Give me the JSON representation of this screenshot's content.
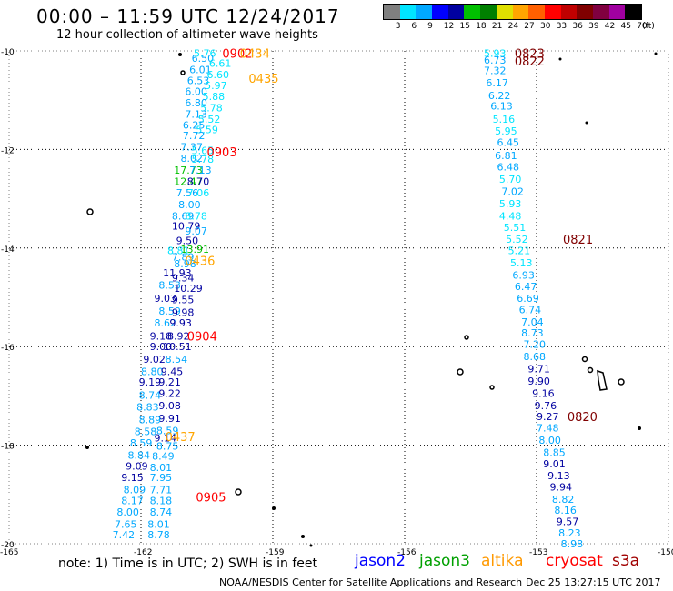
{
  "header": {
    "title": "00:00 – 11:59 UTC 12/24/2017",
    "subtitle": "12 hour collection of altimeter wave heights"
  },
  "legend": {
    "colors": [
      "#808080",
      "#00e5ff",
      "#00a8ff",
      "#0000ff",
      "#0000a0",
      "#00c000",
      "#008000",
      "#e0e000",
      "#ffa500",
      "#ff6000",
      "#ff0000",
      "#c00000",
      "#800000",
      "#800040",
      "#a000a0",
      "#000000"
    ],
    "labels": [
      "3",
      "6",
      "9",
      "12",
      "15",
      "18",
      "21",
      "24",
      "27",
      "30",
      "33",
      "36",
      "39",
      "42",
      "45",
      "70",
      "(ft)"
    ]
  },
  "axes": {
    "lat_labels": [
      "-10",
      "-12",
      "-14",
      "-16",
      "-18",
      "-20"
    ],
    "lon_labels": [
      "-165",
      "-162",
      "-159",
      "-156",
      "-153",
      "-150"
    ]
  },
  "tracks": [
    {
      "time": "0902",
      "color": "#ff0000"
    },
    {
      "time": "0434",
      "color": "#ffa500"
    },
    {
      "time": "0435",
      "color": "#ffa500"
    },
    {
      "time": "0903",
      "color": "#ff0000"
    },
    {
      "time": "0436",
      "color": "#ffa500"
    },
    {
      "time": "0904",
      "color": "#ff0000"
    },
    {
      "time": "0437",
      "color": "#ffa500"
    },
    {
      "time": "0905",
      "color": "#ff0000"
    },
    {
      "time": "0823",
      "color": "#800000"
    },
    {
      "time": "0822",
      "color": "#800000"
    },
    {
      "time": "0821",
      "color": "#800000"
    },
    {
      "time": "0820",
      "color": "#800000"
    }
  ],
  "west_track_readings": [
    {
      "lat": -10.05,
      "lon": -160.8,
      "value": "5.76",
      "color": "#00e5ff"
    },
    {
      "lat": -10.15,
      "lon": -160.85,
      "value": "6.50",
      "color": "#00a8ff"
    },
    {
      "lat": -10.25,
      "lon": -160.45,
      "value": "6.61",
      "color": "#00e5ff"
    },
    {
      "lat": -10.38,
      "lon": -160.9,
      "value": "6.01",
      "color": "#00a8ff"
    },
    {
      "lat": -10.48,
      "lon": -160.5,
      "value": "6.60",
      "color": "#00e5ff"
    },
    {
      "lat": -10.6,
      "lon": -160.95,
      "value": "6.53",
      "color": "#00a8ff"
    },
    {
      "lat": -10.7,
      "lon": -160.55,
      "value": "5.97",
      "color": "#00e5ff"
    },
    {
      "lat": -10.82,
      "lon": -161.0,
      "value": "6.00",
      "color": "#00a8ff"
    },
    {
      "lat": -10.92,
      "lon": -160.6,
      "value": "5.88",
      "color": "#00e5ff"
    },
    {
      "lat": -11.05,
      "lon": -161.0,
      "value": "6.80",
      "color": "#00a8ff"
    },
    {
      "lat": -11.15,
      "lon": -160.65,
      "value": "5.78",
      "color": "#00e5ff"
    },
    {
      "lat": -11.28,
      "lon": -161.0,
      "value": "7.13",
      "color": "#00a8ff"
    },
    {
      "lat": -11.38,
      "lon": -160.7,
      "value": "5.52",
      "color": "#00e5ff"
    },
    {
      "lat": -11.5,
      "lon": -161.05,
      "value": "6.25",
      "color": "#00a8ff"
    },
    {
      "lat": -11.6,
      "lon": -160.75,
      "value": "5.59",
      "color": "#00e5ff"
    },
    {
      "lat": -11.72,
      "lon": -161.05,
      "value": "7.72",
      "color": "#00a8ff"
    },
    {
      "lat": -11.95,
      "lon": -161.1,
      "value": "7.37",
      "color": "#00a8ff"
    },
    {
      "lat": -12.02,
      "lon": -160.85,
      "value": "5.65",
      "color": "#00e5ff"
    },
    {
      "lat": -12.18,
      "lon": -161.1,
      "value": "8.02",
      "color": "#00a8ff"
    },
    {
      "lat": -12.2,
      "lon": -160.85,
      "value": "5.78",
      "color": "#00e5ff"
    },
    {
      "lat": -12.42,
      "lon": -161.25,
      "value": "17.73",
      "color": "#00c000"
    },
    {
      "lat": -12.42,
      "lon": -160.9,
      "value": "7.13",
      "color": "#00a8ff"
    },
    {
      "lat": -12.65,
      "lon": -161.25,
      "value": "12.47",
      "color": "#00c000"
    },
    {
      "lat": -12.65,
      "lon": -160.95,
      "value": "8.70",
      "color": "#0000a0"
    },
    {
      "lat": -12.88,
      "lon": -161.2,
      "value": "7.56",
      "color": "#00a8ff"
    },
    {
      "lat": -12.88,
      "lon": -160.95,
      "value": "7.06",
      "color": "#00e5ff"
    },
    {
      "lat": -13.12,
      "lon": -161.15,
      "value": "8.00",
      "color": "#00a8ff"
    },
    {
      "lat": -13.35,
      "lon": -161.3,
      "value": "8.69",
      "color": "#00a8ff"
    },
    {
      "lat": -13.35,
      "lon": -161.0,
      "value": "8.78",
      "color": "#00e5ff"
    },
    {
      "lat": -13.55,
      "lon": -161.3,
      "value": "10.79",
      "color": "#0000a0"
    },
    {
      "lat": -13.65,
      "lon": -161.0,
      "value": "9.07",
      "color": "#00a8ff"
    },
    {
      "lat": -13.85,
      "lon": -161.2,
      "value": "9.50",
      "color": "#0000a0"
    },
    {
      "lat": -14.02,
      "lon": -161.1,
      "value": "13.91",
      "color": "#00c000"
    },
    {
      "lat": -14.05,
      "lon": -161.4,
      "value": "8.81",
      "color": "#00e5ff"
    },
    {
      "lat": -14.18,
      "lon": -161.3,
      "value": "7.89",
      "color": "#00a8ff"
    },
    {
      "lat": -14.32,
      "lon": -161.25,
      "value": "8.98",
      "color": "#00a8ff"
    },
    {
      "lat": -14.5,
      "lon": -161.5,
      "value": "11.93",
      "color": "#0000a0"
    },
    {
      "lat": -14.6,
      "lon": -161.3,
      "value": "9.34",
      "color": "#0000a0"
    },
    {
      "lat": -14.75,
      "lon": -161.6,
      "value": "8.53",
      "color": "#00a8ff"
    },
    {
      "lat": -14.82,
      "lon": -161.25,
      "value": "10.29",
      "color": "#0000a0"
    },
    {
      "lat": -15.02,
      "lon": -161.7,
      "value": "9.03",
      "color": "#0000a0"
    },
    {
      "lat": -15.05,
      "lon": -161.3,
      "value": "9.55",
      "color": "#0000a0"
    },
    {
      "lat": -15.28,
      "lon": -161.6,
      "value": "8.59",
      "color": "#00a8ff"
    },
    {
      "lat": -15.3,
      "lon": -161.3,
      "value": "9.98",
      "color": "#0000a0"
    },
    {
      "lat": -15.52,
      "lon": -161.7,
      "value": "8.62",
      "color": "#00a8ff"
    },
    {
      "lat": -15.52,
      "lon": -161.35,
      "value": "9.93",
      "color": "#0000a0"
    },
    {
      "lat": -15.78,
      "lon": -161.8,
      "value": "9.18",
      "color": "#0000a0"
    },
    {
      "lat": -15.78,
      "lon": -161.4,
      "value": "8.92",
      "color": "#0000a0"
    },
    {
      "lat": -16.0,
      "lon": -161.8,
      "value": "9.00",
      "color": "#0000a0"
    },
    {
      "lat": -16.0,
      "lon": -161.5,
      "value": "10.51",
      "color": "#0000a0"
    },
    {
      "lat": -16.25,
      "lon": -161.95,
      "value": "9.02",
      "color": "#0000a0"
    },
    {
      "lat": -16.25,
      "lon": -161.45,
      "value": "8.54",
      "color": "#00a8ff"
    },
    {
      "lat": -16.5,
      "lon": -162.0,
      "value": "8.80",
      "color": "#00a8ff"
    },
    {
      "lat": -16.5,
      "lon": -161.55,
      "value": "9.45",
      "color": "#0000a0"
    },
    {
      "lat": -16.72,
      "lon": -162.05,
      "value": "9.19",
      "color": "#0000a0"
    },
    {
      "lat": -16.72,
      "lon": -161.6,
      "value": "9.21",
      "color": "#0000a0"
    },
    {
      "lat": -16.98,
      "lon": -162.05,
      "value": "8.74",
      "color": "#00a8ff"
    },
    {
      "lat": -16.95,
      "lon": -161.6,
      "value": "9.22",
      "color": "#0000a0"
    },
    {
      "lat": -17.2,
      "lon": -161.6,
      "value": "9.08",
      "color": "#0000a0"
    },
    {
      "lat": -17.22,
      "lon": -162.1,
      "value": "8.83",
      "color": "#00a8ff"
    },
    {
      "lat": -17.45,
      "lon": -161.6,
      "value": "9.91",
      "color": "#0000a0"
    },
    {
      "lat": -17.48,
      "lon": -162.05,
      "value": "8.89",
      "color": "#00a8ff"
    },
    {
      "lat": -17.7,
      "lon": -161.65,
      "value": "8.59",
      "color": "#00a8ff"
    },
    {
      "lat": -17.72,
      "lon": -162.15,
      "value": "8.58",
      "color": "#00a8ff"
    },
    {
      "lat": -17.85,
      "lon": -161.7,
      "value": "9.14",
      "color": "#0000a0"
    },
    {
      "lat": -17.95,
      "lon": -162.25,
      "value": "8.59",
      "color": "#00a8ff"
    },
    {
      "lat": -18.02,
      "lon": -161.65,
      "value": "8.75",
      "color": "#00a8ff"
    },
    {
      "lat": -18.2,
      "lon": -162.3,
      "value": "8.84",
      "color": "#00a8ff"
    },
    {
      "lat": -18.22,
      "lon": -161.75,
      "value": "8.49",
      "color": "#00a8ff"
    },
    {
      "lat": -18.42,
      "lon": -162.35,
      "value": "9.09",
      "color": "#0000a0"
    },
    {
      "lat": -18.45,
      "lon": -161.8,
      "value": "8.01",
      "color": "#00a8ff"
    },
    {
      "lat": -18.65,
      "lon": -162.45,
      "value": "9.15",
      "color": "#0000a0"
    },
    {
      "lat": -18.65,
      "lon": -161.8,
      "value": "7.95",
      "color": "#00a8ff"
    },
    {
      "lat": -18.9,
      "lon": -162.4,
      "value": "8.09",
      "color": "#00a8ff"
    },
    {
      "lat": -18.9,
      "lon": -161.8,
      "value": "7.71",
      "color": "#00a8ff"
    },
    {
      "lat": -19.12,
      "lon": -162.45,
      "value": "8.17",
      "color": "#00a8ff"
    },
    {
      "lat": -19.12,
      "lon": -161.8,
      "value": "8.18",
      "color": "#00a8ff"
    },
    {
      "lat": -19.35,
      "lon": -162.55,
      "value": "8.00",
      "color": "#00a8ff"
    },
    {
      "lat": -19.35,
      "lon": -161.8,
      "value": "8.74",
      "color": "#00a8ff"
    },
    {
      "lat": -19.6,
      "lon": -162.6,
      "value": "7.65",
      "color": "#00a8ff"
    },
    {
      "lat": -19.6,
      "lon": -161.85,
      "value": "8.01",
      "color": "#00a8ff"
    },
    {
      "lat": -19.82,
      "lon": -162.65,
      "value": "7.42",
      "color": "#00a8ff"
    },
    {
      "lat": -19.82,
      "lon": -161.85,
      "value": "8.78",
      "color": "#00a8ff"
    }
  ],
  "east_track_readings": [
    {
      "lat": -10.05,
      "lon": -154.2,
      "value": "5.93",
      "color": "#00e5ff"
    },
    {
      "lat": -10.18,
      "lon": -154.2,
      "value": "6.73",
      "color": "#00a8ff"
    },
    {
      "lat": -10.4,
      "lon": -154.2,
      "value": "7.32",
      "color": "#00a8ff"
    },
    {
      "lat": -10.65,
      "lon": -154.15,
      "value": "6.17",
      "color": "#00a8ff"
    },
    {
      "lat": -10.9,
      "lon": -154.1,
      "value": "6.22",
      "color": "#00a8ff"
    },
    {
      "lat": -11.12,
      "lon": -154.05,
      "value": "6.13",
      "color": "#00a8ff"
    },
    {
      "lat": -11.38,
      "lon": -154.0,
      "value": "5.16",
      "color": "#00e5ff"
    },
    {
      "lat": -11.62,
      "lon": -153.95,
      "value": "5.95",
      "color": "#00e5ff"
    },
    {
      "lat": -11.85,
      "lon": -153.9,
      "value": "6.45",
      "color": "#00a8ff"
    },
    {
      "lat": -12.12,
      "lon": -153.95,
      "value": "6.81",
      "color": "#00a8ff"
    },
    {
      "lat": -12.35,
      "lon": -153.9,
      "value": "6.48",
      "color": "#00a8ff"
    },
    {
      "lat": -12.6,
      "lon": -153.85,
      "value": "5.70",
      "color": "#00e5ff"
    },
    {
      "lat": -12.85,
      "lon": -153.8,
      "value": "7.02",
      "color": "#00a8ff"
    },
    {
      "lat": -13.1,
      "lon": -153.85,
      "value": "5.93",
      "color": "#00e5ff"
    },
    {
      "lat": -13.35,
      "lon": -153.85,
      "value": "4.48",
      "color": "#00e5ff"
    },
    {
      "lat": -13.58,
      "lon": -153.75,
      "value": "5.51",
      "color": "#00e5ff"
    },
    {
      "lat": -13.82,
      "lon": -153.7,
      "value": "5.52",
      "color": "#00e5ff"
    },
    {
      "lat": -14.05,
      "lon": -153.65,
      "value": "5.21",
      "color": "#00e5ff"
    },
    {
      "lat": -14.3,
      "lon": -153.6,
      "value": "5.13",
      "color": "#00e5ff"
    },
    {
      "lat": -14.55,
      "lon": -153.55,
      "value": "6.93",
      "color": "#00a8ff"
    },
    {
      "lat": -14.78,
      "lon": -153.5,
      "value": "6.47",
      "color": "#00a8ff"
    },
    {
      "lat": -15.02,
      "lon": -153.45,
      "value": "6.69",
      "color": "#00a8ff"
    },
    {
      "lat": -15.25,
      "lon": -153.4,
      "value": "6.74",
      "color": "#00a8ff"
    },
    {
      "lat": -15.5,
      "lon": -153.35,
      "value": "7.04",
      "color": "#00a8ff"
    },
    {
      "lat": -15.72,
      "lon": -153.35,
      "value": "8.73",
      "color": "#00a8ff"
    },
    {
      "lat": -15.95,
      "lon": -153.3,
      "value": "7.20",
      "color": "#00a8ff"
    },
    {
      "lat": -16.2,
      "lon": -153.3,
      "value": "8.68",
      "color": "#00a8ff"
    },
    {
      "lat": -16.45,
      "lon": -153.2,
      "value": "9.71",
      "color": "#0000a0"
    },
    {
      "lat": -16.7,
      "lon": -153.2,
      "value": "9.90",
      "color": "#0000a0"
    },
    {
      "lat": -16.95,
      "lon": -153.1,
      "value": "9.16",
      "color": "#0000a0"
    },
    {
      "lat": -17.2,
      "lon": -153.05,
      "value": "9.76",
      "color": "#0000a0"
    },
    {
      "lat": -17.42,
      "lon": -153.0,
      "value": "9.27",
      "color": "#0000a0"
    },
    {
      "lat": -17.65,
      "lon": -153.0,
      "value": "7.48",
      "color": "#00a8ff"
    },
    {
      "lat": -17.9,
      "lon": -152.95,
      "value": "8.00",
      "color": "#00a8ff"
    },
    {
      "lat": -18.15,
      "lon": -152.85,
      "value": "8.85",
      "color": "#00a8ff"
    },
    {
      "lat": -18.38,
      "lon": -152.85,
      "value": "9.01",
      "color": "#0000a0"
    },
    {
      "lat": -18.62,
      "lon": -152.75,
      "value": "9.13",
      "color": "#0000a0"
    },
    {
      "lat": -18.85,
      "lon": -152.7,
      "value": "9.94",
      "color": "#0000a0"
    },
    {
      "lat": -19.1,
      "lon": -152.65,
      "value": "8.82",
      "color": "#00a8ff"
    },
    {
      "lat": -19.32,
      "lon": -152.6,
      "value": "8.16",
      "color": "#00a8ff"
    },
    {
      "lat": -19.55,
      "lon": -152.55,
      "value": "9.57",
      "color": "#0000a0"
    },
    {
      "lat": -19.78,
      "lon": -152.5,
      "value": "8.23",
      "color": "#00a8ff"
    },
    {
      "lat": -20.0,
      "lon": -152.45,
      "value": "8.98",
      "color": "#00a8ff"
    }
  ],
  "footer": {
    "note": "note: 1) Time is in UTC; 2) SWH is in feet",
    "satellites": [
      {
        "name": "jason2",
        "color": "#0000ff"
      },
      {
        "name": "jason3",
        "color": "#00a000"
      },
      {
        "name": "altika",
        "color": "#ff9900"
      },
      {
        "name": "cryosat",
        "color": "#ff0000"
      },
      {
        "name": "s3a",
        "color": "#a00000"
      }
    ],
    "org": "NOAA/NESDIS Center for Satellite Applications and Research",
    "generated": "Dec 25 13:27:15 UTC 2017"
  }
}
